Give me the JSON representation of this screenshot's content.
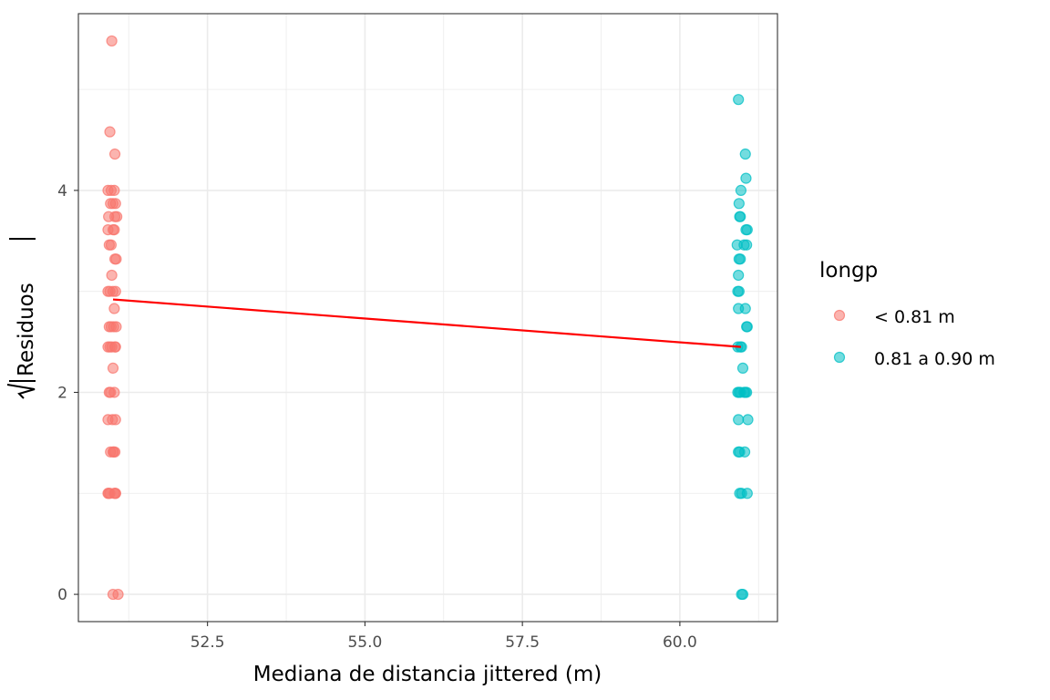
{
  "chart_data": {
    "type": "scatter",
    "title": "",
    "xlabel": "Mediana de distancia jittered (m)",
    "ylabel": "Residuos",
    "ylabel_math": "sqrt(|Residuos|)",
    "xlim": [
      50.45,
      61.55
    ],
    "ylim": [
      -0.27,
      5.75
    ],
    "x_ticks": [
      52.5,
      55.0,
      57.5,
      60.0
    ],
    "x_tick_labels": [
      "52.5",
      "55.0",
      "57.5",
      "60.0"
    ],
    "y_ticks": [
      0,
      2,
      4
    ],
    "y_tick_labels": [
      "0",
      "2",
      "4"
    ],
    "grid": true,
    "theme": "bw",
    "legend": {
      "title": "longp",
      "position": "right",
      "entries": [
        "< 0.81 m",
        "0.81 a 0.90 m"
      ]
    },
    "colors": {
      "series1": "#F8766D",
      "series2": "#00BFC4",
      "trend": "#FF0000"
    },
    "series": [
      {
        "name": "< 0.81 m",
        "x": [
          50.98,
          50.95,
          51.03,
          50.92,
          50.97,
          51.02,
          51.04,
          50.96,
          51.0,
          51.03,
          50.93,
          51.06,
          50.92,
          51.0,
          51.02,
          50.94,
          50.97,
          51.03,
          51.05,
          50.98,
          50.95,
          50.92,
          51.0,
          51.04,
          51.02,
          50.97,
          50.94,
          51.05,
          51.01,
          50.92,
          50.98,
          51.03,
          50.95,
          51.04,
          51.0,
          50.96,
          51.02,
          50.94,
          51.04,
          50.99,
          50.92,
          51.01,
          50.96,
          51.03,
          51.0,
          50.95,
          51.04,
          50.93,
          51.02,
          50.92,
          51.04,
          51.0,
          51.08
        ],
        "y": [
          5.48,
          4.58,
          4.36,
          4.0,
          4.0,
          4.0,
          3.87,
          3.87,
          3.87,
          3.74,
          3.74,
          3.74,
          3.61,
          3.61,
          3.61,
          3.46,
          3.46,
          3.32,
          3.32,
          3.16,
          3.0,
          3.0,
          3.0,
          3.0,
          2.83,
          2.65,
          2.65,
          2.65,
          2.65,
          2.45,
          2.45,
          2.45,
          2.45,
          2.45,
          2.24,
          2.0,
          2.0,
          2.0,
          1.73,
          1.73,
          1.73,
          1.41,
          1.41,
          1.41,
          1.41,
          1.0,
          1.0,
          1.0,
          1.0,
          1.0,
          1.0,
          0.0,
          0.0
        ]
      },
      {
        "name": "0.81 a 0.90 m",
        "x": [
          60.93,
          61.04,
          61.05,
          60.97,
          60.94,
          60.95,
          60.96,
          61.05,
          61.07,
          60.91,
          61.02,
          61.06,
          60.94,
          60.96,
          60.93,
          60.94,
          60.92,
          60.93,
          61.04,
          61.06,
          61.07,
          60.92,
          60.96,
          60.98,
          61.0,
          60.94,
          60.92,
          60.96,
          61.02,
          61.04,
          61.06,
          60.93,
          61.08,
          60.93,
          60.95,
          61.03,
          60.95,
          60.98,
          61.07,
          60.98,
          61.0
        ],
        "y": [
          4.9,
          4.36,
          4.12,
          4.0,
          3.87,
          3.74,
          3.74,
          3.61,
          3.61,
          3.46,
          3.46,
          3.46,
          3.32,
          3.32,
          3.16,
          3.0,
          3.0,
          2.83,
          2.83,
          2.65,
          2.65,
          2.45,
          2.45,
          2.45,
          2.24,
          2.0,
          2.0,
          2.0,
          2.0,
          2.0,
          2.0,
          1.73,
          1.73,
          1.41,
          1.41,
          1.41,
          1.0,
          1.0,
          1.0,
          0.0,
          0.0
        ]
      }
    ],
    "trend_line": {
      "x": [
        51.0,
        60.97
      ],
      "y": [
        2.92,
        2.45
      ]
    }
  }
}
